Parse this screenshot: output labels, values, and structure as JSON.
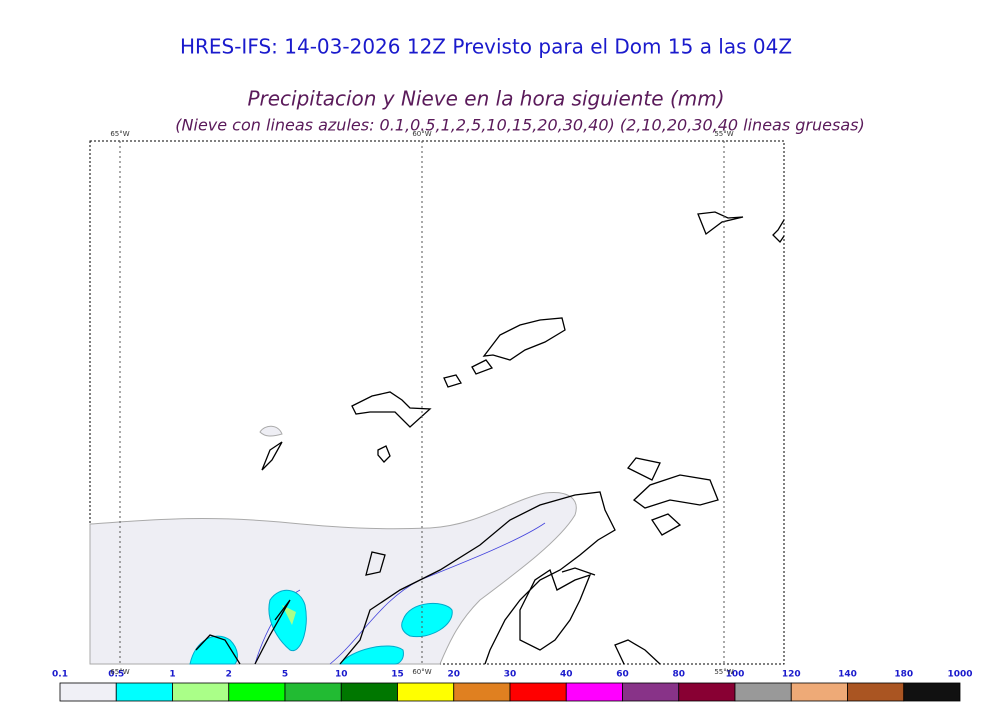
{
  "header": {
    "title": "HRES-IFS: 14-03-2026 12Z Previsto para el Dom 15 a las 04Z",
    "subtitle": "Precipitacion y Nieve en la hora siguiente (mm)",
    "note": "(Nieve con lineas azules: 0.1,0.5,1,2,5,10,15,20,30,40)  (2,10,20,30,40 lineas gruesas)"
  },
  "map": {
    "longitudes": [
      "65°W",
      "60°W",
      "55°W"
    ]
  },
  "legend": {
    "labels": [
      "0.1",
      "0.5",
      "1",
      "2",
      "5",
      "10",
      "15",
      "20",
      "30",
      "40",
      "60",
      "80",
      "100",
      "120",
      "140",
      "180",
      "1000"
    ],
    "colors": [
      "#f0f0f6",
      "#00ffff",
      "#aaff88",
      "#00ff00",
      "#22bb33",
      "#007700",
      "#ffff00",
      "#e08020",
      "#ff0000",
      "#ff00ff",
      "#883388",
      "#880033",
      "#999999",
      "#eeaa77",
      "#aa5522",
      "#111111"
    ]
  }
}
